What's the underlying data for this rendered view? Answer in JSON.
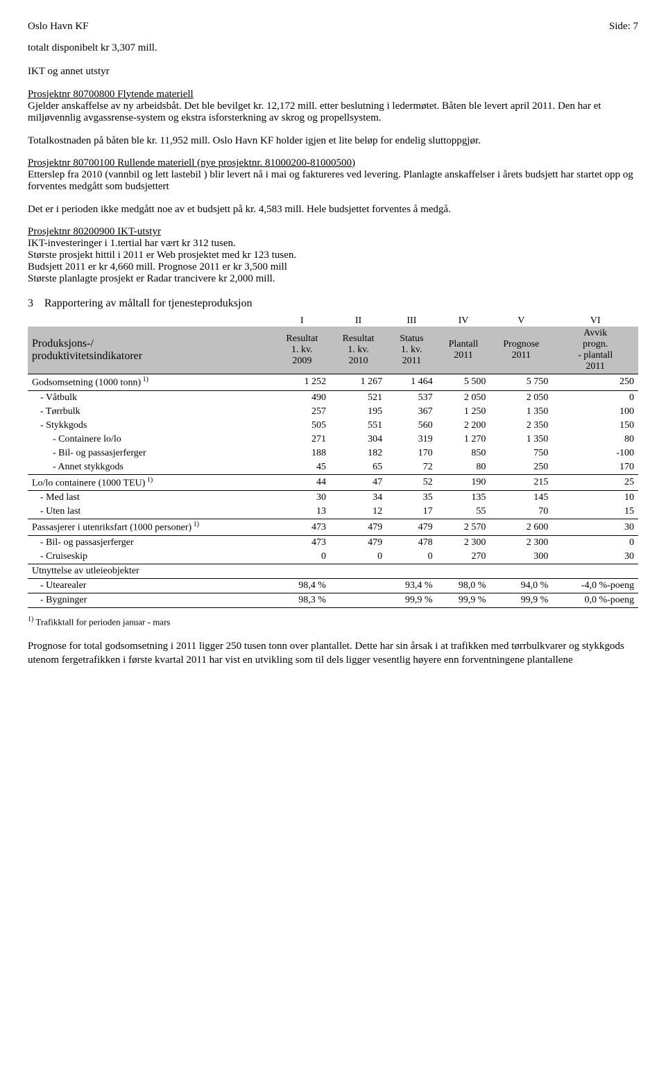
{
  "header": {
    "org": "Oslo Havn KF",
    "page": "Side:  7"
  },
  "intro": "totalt disponibelt kr 3,307 mill.",
  "h_ikt": "IKT og annet utstyr",
  "p1_title": "Prosjektnr 80700800 Flytende materiell",
  "p1_body": "Gjelder anskaffelse av ny arbeidsbåt. Det ble bevilget kr. 12,172 mill. etter beslutning i ledermøtet. Båten ble levert april 2011. Den har et miljøvennlig avgassrense-system og ekstra isforsterkning av skrog og propellsystem.",
  "p1b": "Totalkostnaden på båten ble kr. 11,952 mill. Oslo Havn KF holder igjen et lite beløp for endelig sluttoppgjør.",
  "p2_title": "Prosjektnr 80700100 Rullende materiell (nye prosjektnr. 81000200-81000500)",
  "p2_body": "Etterslep fra 2010 (vannbil og lett lastebil ) blir levert nå i mai og faktureres ved levering. Planlagte anskaffelser i årets budsjett har startet opp og forventes medgått som budsjettert",
  "p2b": "Det er i perioden ikke medgått noe av et budsjett på kr. 4,583 mill. Hele budsjettet forventes å medgå.",
  "p3_title": "Prosjektnr 80200900 IKT-utstyr",
  "p3_l1": "IKT-investeringer i 1.tertial har vært kr 312 tusen.",
  "p3_l2": "Største prosjekt hittil i 2011 er Web prosjektet med kr 123 tusen.",
  "p3_l3": "Budsjett 2011 er kr 4,660 mill. Prognose 2011 er kr 3,500 mill",
  "p3_l4": "Største planlagte prosjekt er Radar trancivere kr 2,000 mill.",
  "section3_num": "3",
  "section3_title": "Rapportering av måltall for tjenesteproduksjon",
  "table": {
    "roman": [
      "I",
      "II",
      "III",
      "IV",
      "V",
      "VI"
    ],
    "rowhead": "Produksjons-/\nproduktivitetsindikatorer",
    "cols": [
      "Resultat\n1. kv.\n2009",
      "Resultat\n1. kv.\n2010",
      "Status\n1. kv.\n2011",
      "Plantall\n2011",
      "Prognose\n2011",
      "Avvik\nprogn.\n- plantall\n2011"
    ],
    "rows": [
      {
        "label": "Godsomsetning (1000 tonn)",
        "sup": "1)",
        "group": true,
        "v": [
          "1 252",
          "1 267",
          "1 464",
          "5 500",
          "5 750",
          "250"
        ]
      },
      {
        "label": "- Våtbulk",
        "indent": 1,
        "v": [
          "490",
          "521",
          "537",
          "2 050",
          "2 050",
          "0"
        ]
      },
      {
        "label": "- Tørrbulk",
        "indent": 1,
        "v": [
          "257",
          "195",
          "367",
          "1 250",
          "1 350",
          "100"
        ]
      },
      {
        "label": "- Stykkgods",
        "indent": 1,
        "v": [
          "505",
          "551",
          "560",
          "2 200",
          "2 350",
          "150"
        ]
      },
      {
        "label": "- Containere lo/lo",
        "indent": 2,
        "v": [
          "271",
          "304",
          "319",
          "1 270",
          "1 350",
          "80"
        ]
      },
      {
        "label": "- Bil- og passasjerferger",
        "indent": 2,
        "v": [
          "188",
          "182",
          "170",
          "850",
          "750",
          "-100"
        ]
      },
      {
        "label": "- Annet stykkgods",
        "indent": 2,
        "v": [
          "45",
          "65",
          "72",
          "80",
          "250",
          "170"
        ]
      },
      {
        "label": "Lo/lo containere (1000 TEU)",
        "sup": "1)",
        "group": true,
        "v": [
          "44",
          "47",
          "52",
          "190",
          "215",
          "25"
        ]
      },
      {
        "label": "- Med last",
        "indent": 1,
        "v": [
          "30",
          "34",
          "35",
          "135",
          "145",
          "10"
        ]
      },
      {
        "label": "- Uten last",
        "indent": 1,
        "v": [
          "13",
          "12",
          "17",
          "55",
          "70",
          "15"
        ]
      },
      {
        "label": "Passasjerer i utenriksfart (1000 personer)",
        "sup": "1)",
        "group": true,
        "v": [
          "473",
          "479",
          "479",
          "2 570",
          "2 600",
          "30"
        ]
      },
      {
        "label": "- Bil- og passasjerferger",
        "indent": 1,
        "v": [
          "473",
          "479",
          "478",
          "2 300",
          "2 300",
          "0"
        ]
      },
      {
        "label": "- Cruiseskip",
        "indent": 1,
        "v": [
          "0",
          "0",
          "0",
          "270",
          "300",
          "30"
        ]
      },
      {
        "label": "Utnyttelse av utleieobjekter",
        "group": true,
        "v": [
          "",
          "",
          "",
          "",
          "",
          ""
        ]
      },
      {
        "label": "- Utearealer",
        "indent": 1,
        "v": [
          "98,4 %",
          "",
          "93,4 %",
          "98,0 %",
          "94,0 %",
          "-4,0 %-poeng"
        ]
      },
      {
        "label": "- Bygninger",
        "indent": 1,
        "bottom": true,
        "v": [
          "98,3 %",
          "",
          "99,9 %",
          "99,9 %",
          "99,9 %",
          "0,0 %-poeng"
        ]
      }
    ]
  },
  "footnote_sup": "1)",
  "footnote": "Trafikktall for perioden januar - mars",
  "closing": "Prognose for total godsomsetning i 2011 ligger 250 tusen tonn over plantallet. Dette har sin årsak i at trafikken med tørrbulkvarer og stykkgods utenom fergetrafikken i første kvartal 2011 har vist en utvikling som til dels ligger vesentlig høyere enn forventningene plantallene"
}
